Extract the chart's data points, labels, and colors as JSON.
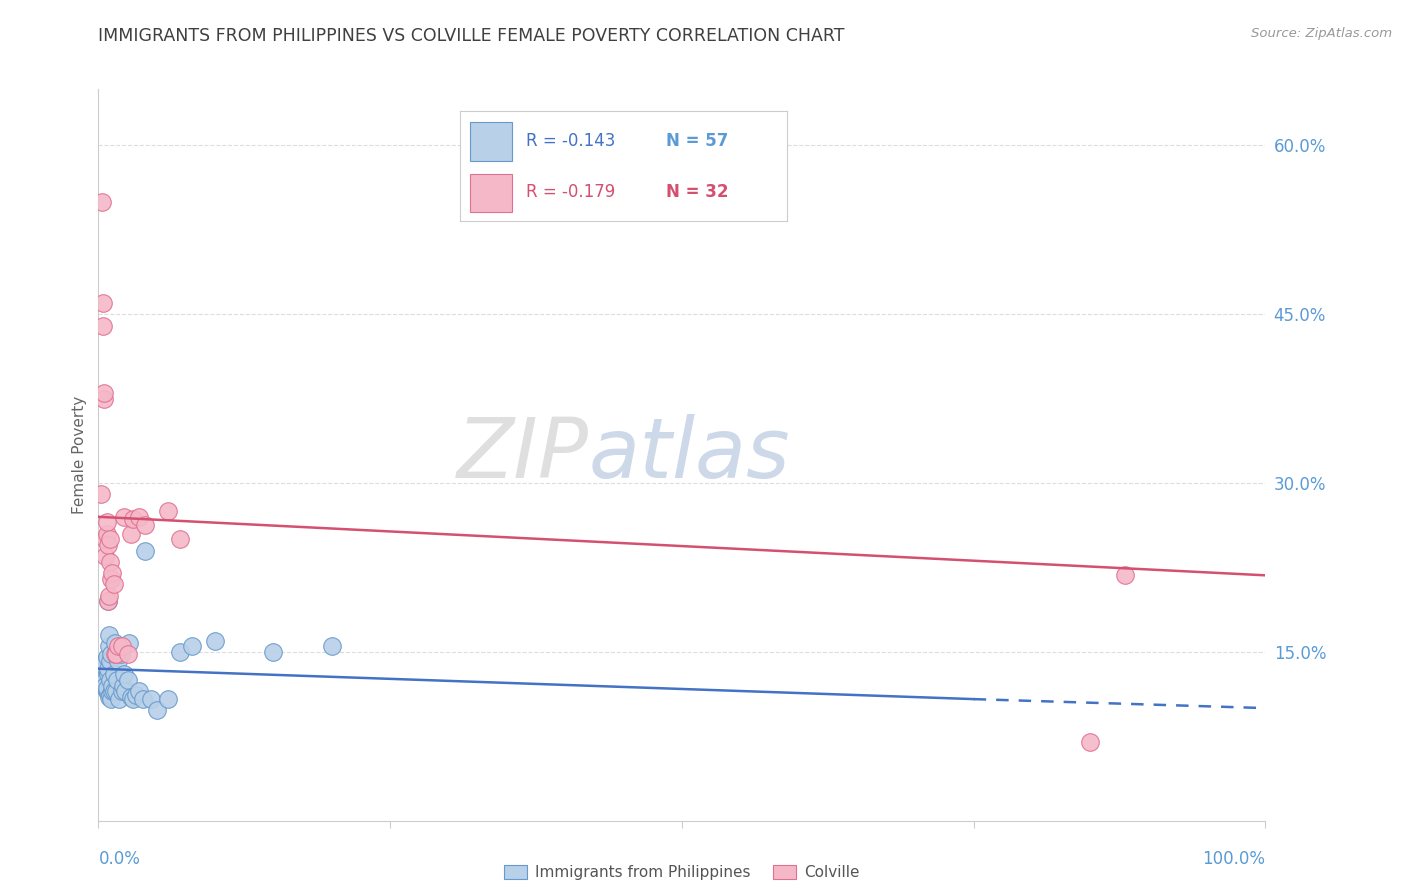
{
  "title": "IMMIGRANTS FROM PHILIPPINES VS COLVILLE FEMALE POVERTY CORRELATION CHART",
  "source": "Source: ZipAtlas.com",
  "ylabel": "Female Poverty",
  "yticks": [
    0.0,
    0.15,
    0.3,
    0.45,
    0.6
  ],
  "legend_blue_r": "-0.143",
  "legend_blue_n": "57",
  "legend_pink_r": "-0.179",
  "legend_pink_n": "32",
  "legend_blue_label": "Immigrants from Philippines",
  "legend_pink_label": "Colville",
  "watermark_zip": "ZIP",
  "watermark_atlas": "atlas",
  "blue_fill": "#b8d0e8",
  "blue_edge": "#6699cc",
  "pink_fill": "#f5b8c8",
  "pink_edge": "#e07090",
  "blue_line_color": "#4472c4",
  "pink_line_color": "#d45070",
  "axis_label_color": "#5b9bd5",
  "title_color": "#404040",
  "ylabel_color": "#666666",
  "source_color": "#999999",
  "grid_color": "#dddddd",
  "spine_color": "#cccccc",
  "background": "#ffffff",
  "blue_x": [
    0.002,
    0.003,
    0.003,
    0.004,
    0.004,
    0.004,
    0.005,
    0.005,
    0.005,
    0.006,
    0.006,
    0.006,
    0.006,
    0.007,
    0.007,
    0.007,
    0.008,
    0.008,
    0.008,
    0.009,
    0.009,
    0.009,
    0.01,
    0.01,
    0.01,
    0.011,
    0.011,
    0.012,
    0.012,
    0.013,
    0.013,
    0.014,
    0.015,
    0.016,
    0.017,
    0.018,
    0.019,
    0.02,
    0.021,
    0.022,
    0.023,
    0.025,
    0.026,
    0.028,
    0.03,
    0.032,
    0.035,
    0.038,
    0.04,
    0.045,
    0.05,
    0.06,
    0.07,
    0.08,
    0.1,
    0.15,
    0.2
  ],
  "blue_y": [
    0.135,
    0.13,
    0.125,
    0.14,
    0.128,
    0.132,
    0.126,
    0.138,
    0.122,
    0.14,
    0.118,
    0.125,
    0.12,
    0.145,
    0.115,
    0.118,
    0.195,
    0.13,
    0.135,
    0.155,
    0.165,
    0.11,
    0.112,
    0.125,
    0.142,
    0.108,
    0.148,
    0.115,
    0.12,
    0.13,
    0.115,
    0.158,
    0.115,
    0.125,
    0.142,
    0.108,
    0.148,
    0.115,
    0.12,
    0.13,
    0.115,
    0.125,
    0.158,
    0.11,
    0.108,
    0.112,
    0.115,
    0.108,
    0.24,
    0.108,
    0.098,
    0.108,
    0.15,
    0.155,
    0.16,
    0.15,
    0.155
  ],
  "pink_x": [
    0.002,
    0.003,
    0.004,
    0.004,
    0.005,
    0.005,
    0.006,
    0.006,
    0.007,
    0.007,
    0.008,
    0.008,
    0.009,
    0.01,
    0.01,
    0.011,
    0.012,
    0.013,
    0.014,
    0.015,
    0.017,
    0.02,
    0.022,
    0.025,
    0.028,
    0.03,
    0.035,
    0.04,
    0.06,
    0.07,
    0.85,
    0.88
  ],
  "pink_y": [
    0.29,
    0.55,
    0.44,
    0.46,
    0.375,
    0.38,
    0.235,
    0.25,
    0.255,
    0.265,
    0.245,
    0.195,
    0.2,
    0.25,
    0.23,
    0.215,
    0.22,
    0.21,
    0.148,
    0.148,
    0.155,
    0.155,
    0.27,
    0.148,
    0.255,
    0.268,
    0.27,
    0.263,
    0.275,
    0.25,
    0.07,
    0.218
  ],
  "blue_trend_x": [
    0.0,
    0.75,
    1.0
  ],
  "blue_trend_y": [
    0.135,
    0.108,
    0.1
  ],
  "pink_trend_x": [
    0.0,
    1.0
  ],
  "pink_trend_y": [
    0.27,
    0.218
  ],
  "xlim": [
    0.0,
    1.0
  ],
  "ylim": [
    0.0,
    0.65
  ]
}
